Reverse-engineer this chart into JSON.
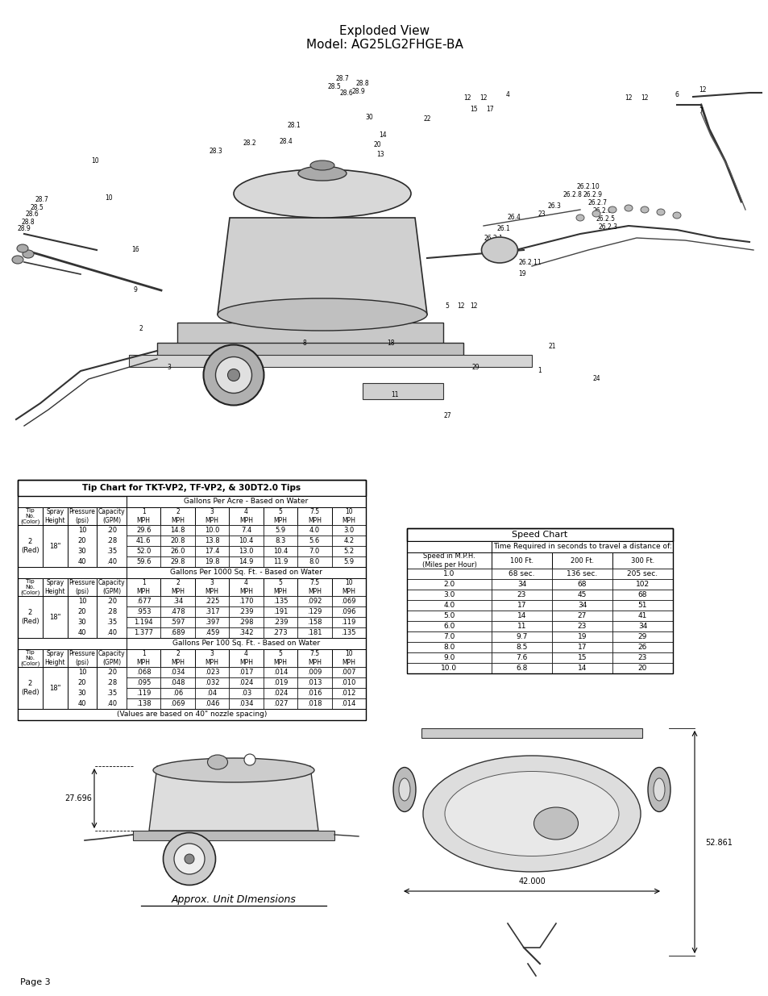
{
  "title_line1": "Exploded View",
  "title_line2": "Model: AG25LG2FHGE-BA",
  "page_label": "Page 3",
  "tip_chart_title": "Tip Chart for TKT-VP2, TF-VP2, & 30DT2.0 Tips",
  "speed_chart_title": "Speed Chart",
  "speed_chart_subtitle": "Time Required in seconds to travel a distance of:",
  "approx_dims_label": "Approx. Unit DImensions",
  "dim_width": "42.000",
  "dim_length": "52.861",
  "dim_height": "27.696",
  "mph_headers": [
    "1\nMPH",
    "2\nMPH",
    "3\nMPH",
    "4\nMPH",
    "5\nMPH",
    "7.5\nMPH",
    "10\nMPH"
  ],
  "tip_table1_header": "Gallons Per Acre - Based on Water",
  "tip_table2_header": "Gallons Per 1000 Sq. Ft. - Based on Water",
  "tip_table3_header": "Gallons Per 100 Sq. Ft. - Based on Water",
  "tip_no": "2\n(Red)",
  "spray_height": "18\"",
  "pressures": [
    "10",
    "20",
    "30",
    "40"
  ],
  "capacities": [
    ".20",
    ".28",
    ".35",
    ".40"
  ],
  "table1_data": [
    [
      "29.6",
      "14.8",
      "10.0",
      "7.4",
      "5.9",
      "4.0",
      "3.0"
    ],
    [
      "41.6",
      "20.8",
      "13.8",
      "10.4",
      "8.3",
      "5.6",
      "4.2"
    ],
    [
      "52.0",
      "26.0",
      "17.4",
      "13.0",
      "10.4",
      "7.0",
      "5.2"
    ],
    [
      "59.6",
      "29.8",
      "19.8",
      "14.9",
      "11.9",
      "8.0",
      "5.9"
    ]
  ],
  "table2_data": [
    [
      ".677",
      ".34",
      ".225",
      ".170",
      ".135",
      ".092",
      ".069"
    ],
    [
      ".953",
      ".478",
      ".317",
      ".239",
      ".191",
      ".129",
      ".096"
    ],
    [
      "1.194",
      ".597",
      ".397",
      ".298",
      ".239",
      ".158",
      ".119"
    ],
    [
      "1.377",
      ".689",
      ".459",
      ".342",
      ".273",
      ".181",
      ".135"
    ]
  ],
  "table3_data": [
    [
      ".068",
      ".034",
      ".023",
      ".017",
      ".014",
      ".009",
      ".007"
    ],
    [
      ".095",
      ".048",
      ".032",
      ".024",
      ".019",
      ".013",
      ".010"
    ],
    [
      ".119",
      ".06",
      ".04",
      ".03",
      ".024",
      ".016",
      ".012"
    ],
    [
      ".138",
      ".069",
      ".046",
      ".034",
      ".027",
      ".018",
      ".014"
    ]
  ],
  "footnote": "(Values are based on 40\" nozzle spacing)",
  "speed_chart_col_headers": [
    "Speed in M.P.H.\n(Miles per Hour)",
    "100 Ft.",
    "200 Ft.",
    "300 Ft."
  ],
  "speed_chart_data": [
    [
      "1.0",
      "68 sec.",
      "136 sec.",
      "205 sec."
    ],
    [
      "2.0",
      "34",
      "68",
      "102"
    ],
    [
      "3.0",
      "23",
      "45",
      "68"
    ],
    [
      "4.0",
      "17",
      "34",
      "51"
    ],
    [
      "5.0",
      "14",
      "27",
      "41"
    ],
    [
      "6.0",
      "11",
      "23",
      "34"
    ],
    [
      "7.0",
      "9.7",
      "19",
      "29"
    ],
    [
      "8.0",
      "8.5",
      "17",
      "26"
    ],
    [
      "9.0",
      "7.6",
      "15",
      "23"
    ],
    [
      "10.0",
      "6.8",
      "14",
      "20"
    ]
  ],
  "bg_color": "#ffffff",
  "text_color": "#000000",
  "table_lw": 0.7
}
